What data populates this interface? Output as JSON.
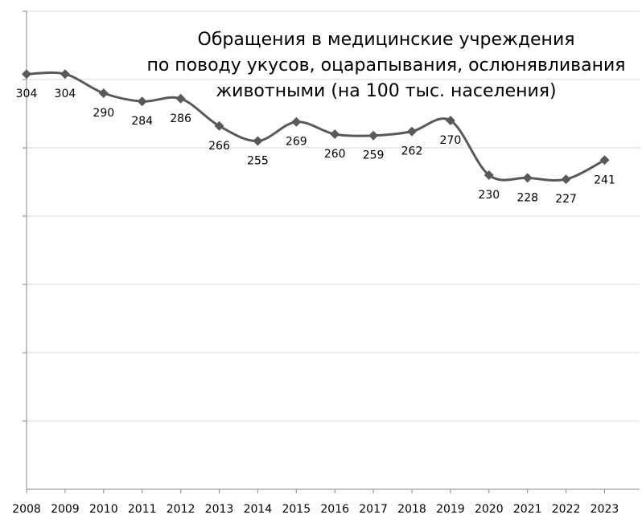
{
  "chart_data": {
    "type": "line",
    "title_lines": [
      "Обращения в медицинские учреждения",
      "по поводу укусов, оцарапывания, ослюнявливания",
      "животными (на 100 тыс. населения)"
    ],
    "categories": [
      "2008",
      "2009",
      "2010",
      "2011",
      "2012",
      "2013",
      "2014",
      "2015",
      "2016",
      "2017",
      "2018",
      "2019",
      "2020",
      "2021",
      "2022",
      "2023"
    ],
    "series": [
      {
        "name": "Обращения",
        "values": [
          304,
          304,
          290,
          284,
          286,
          266,
          255,
          269,
          260,
          259,
          262,
          270,
          230,
          228,
          227,
          241
        ]
      }
    ],
    "ylim": [
      0,
      350
    ],
    "ytick_step": 50,
    "grid": true,
    "smoothed": true,
    "marker": "diamond",
    "line_color": "#595959",
    "grid_color": "#d9d9d9",
    "axis_color": "#868686"
  }
}
